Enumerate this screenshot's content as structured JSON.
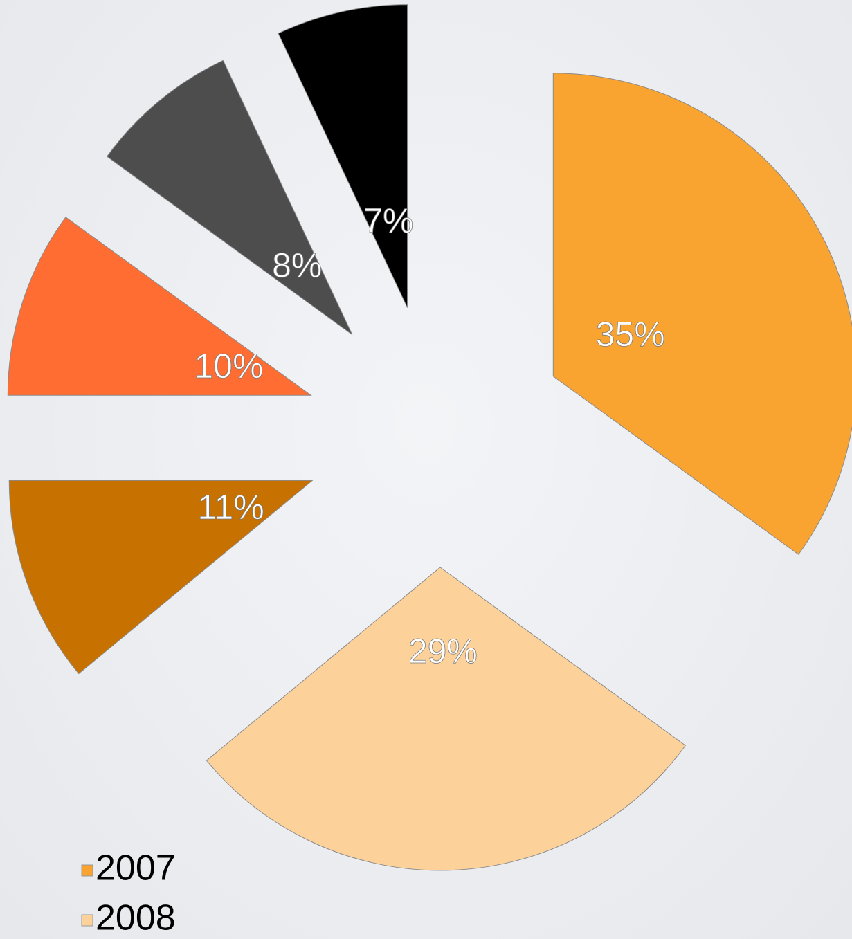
{
  "chart_data": {
    "type": "pie",
    "categories": [
      "2007",
      "2008",
      null,
      null,
      null,
      null
    ],
    "values": [
      35,
      29,
      11,
      10,
      8,
      7
    ],
    "value_labels": [
      "35%",
      "29%",
      "11%",
      "10%",
      "8%",
      "7%"
    ],
    "colors": [
      "#f9a431",
      "#fdd29a",
      "#c77100",
      "#ff6d33",
      "#4d4d4d",
      "#000000"
    ],
    "exploded": true,
    "legend": "bottom-left"
  }
}
